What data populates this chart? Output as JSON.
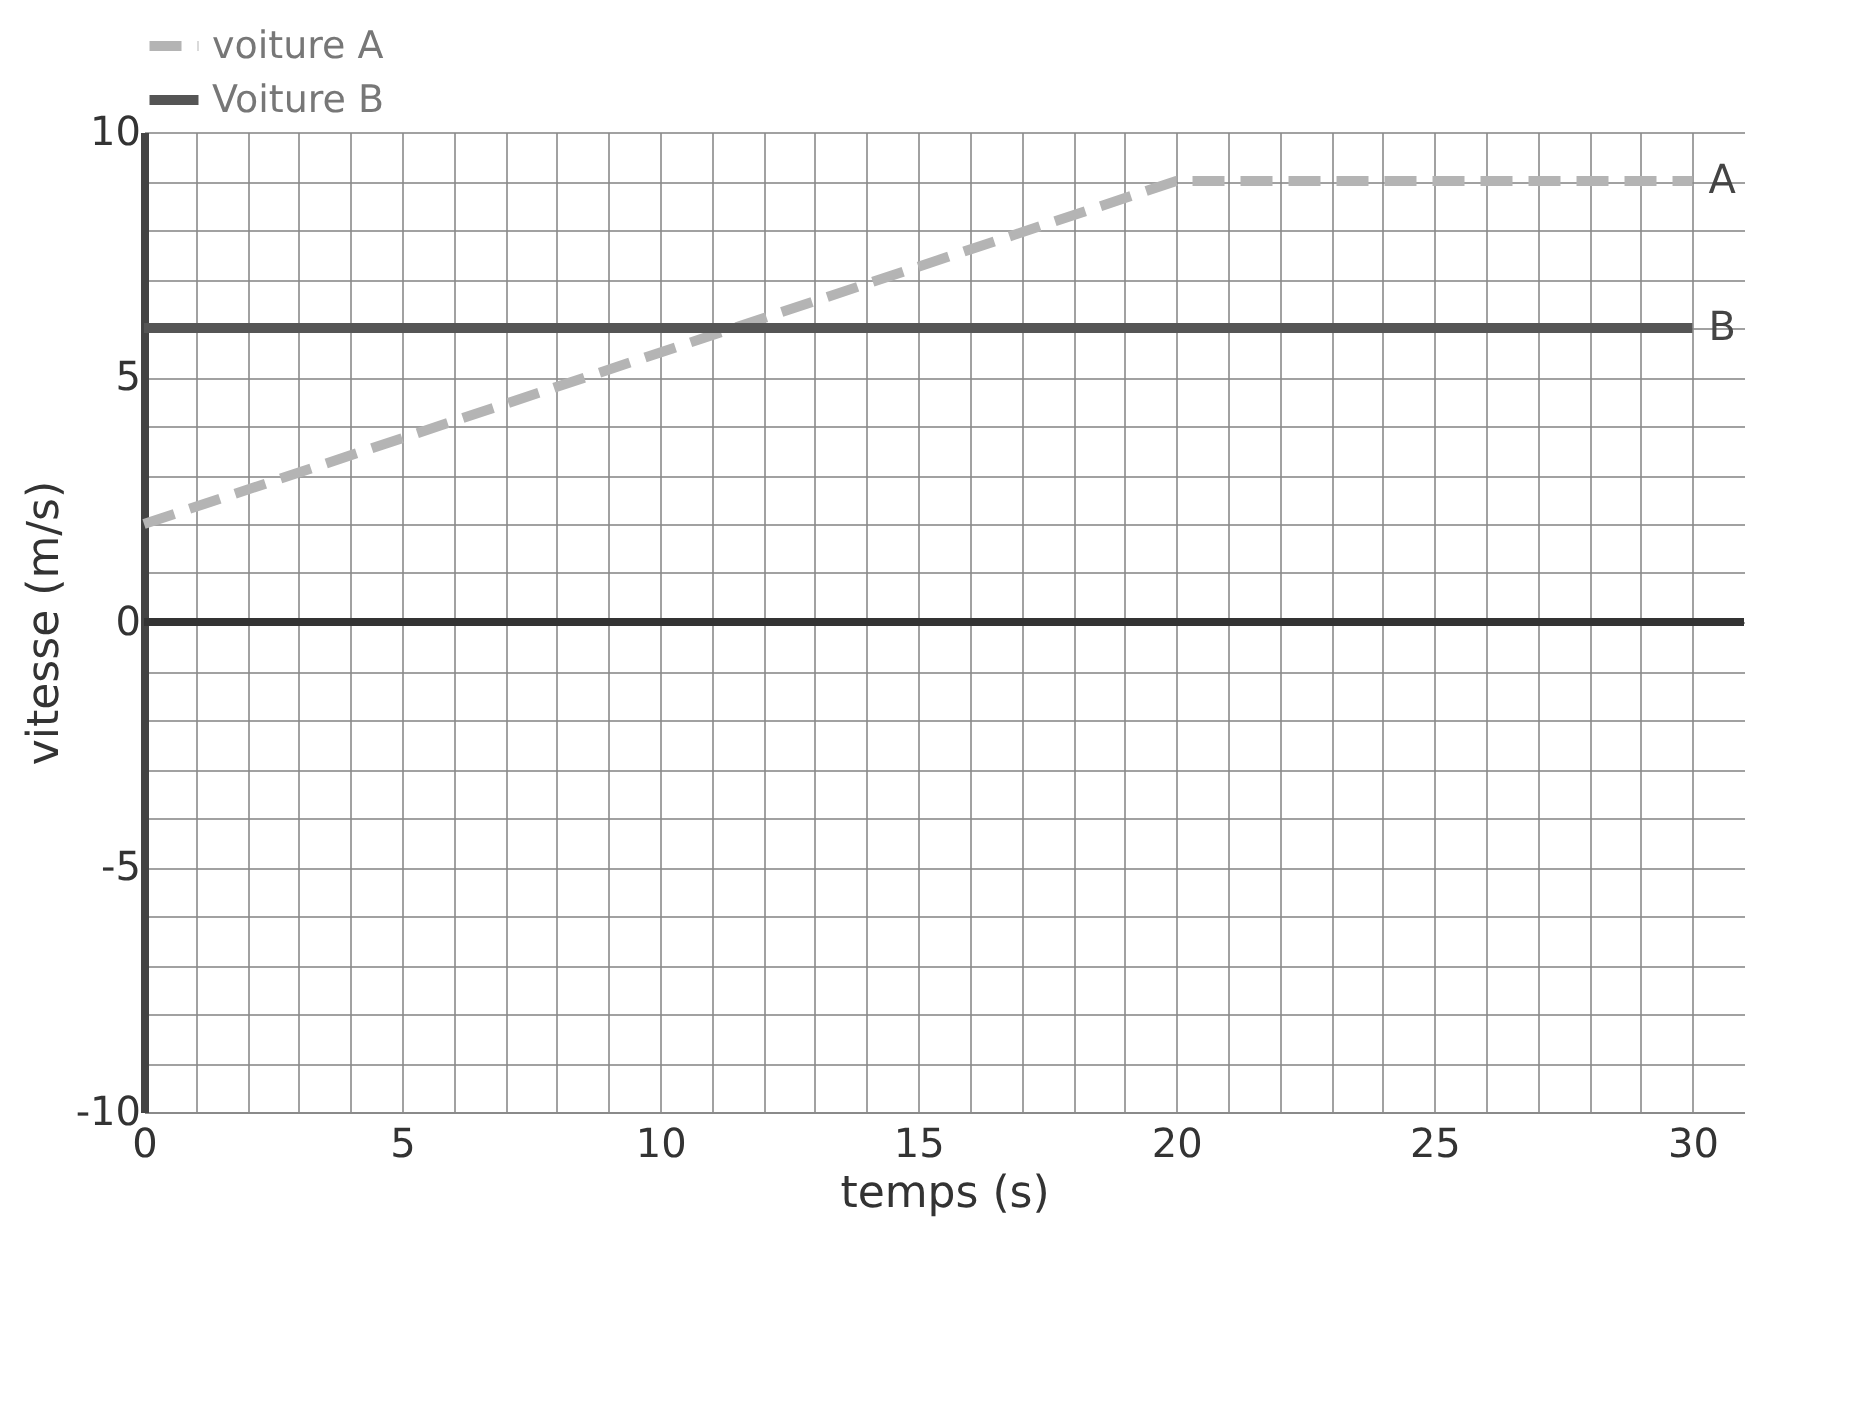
{
  "chart_data": {
    "type": "line",
    "xlabel": "temps (s)",
    "ylabel": "vitesse (m/s)",
    "xlim": [
      0,
      31
    ],
    "ylim": [
      -10,
      10
    ],
    "xticks": [
      0,
      {
        "value": 1,
        "label": null
      },
      {
        "value": 2,
        "label": null
      },
      {
        "value": 3,
        "label": null
      },
      {
        "value": 4,
        "label": null
      },
      5,
      {
        "value": 6,
        "label": null
      },
      {
        "value": 7,
        "label": null
      },
      {
        "value": 8,
        "label": null
      },
      {
        "value": 9,
        "label": null
      },
      10,
      {
        "value": 11,
        "label": null
      },
      {
        "value": 12,
        "label": null
      },
      {
        "value": 13,
        "label": null
      },
      {
        "value": 14,
        "label": null
      },
      15,
      {
        "value": 16,
        "label": null
      },
      {
        "value": 17,
        "label": null
      },
      {
        "value": 18,
        "label": null
      },
      {
        "value": 19,
        "label": null
      },
      20,
      {
        "value": 21,
        "label": null
      },
      {
        "value": 22,
        "label": null
      },
      {
        "value": 23,
        "label": null
      },
      {
        "value": 24,
        "label": null
      },
      25,
      {
        "value": 26,
        "label": null
      },
      {
        "value": 27,
        "label": null
      },
      {
        "value": 28,
        "label": null
      },
      {
        "value": 29,
        "label": null
      },
      30
    ],
    "yticks": [
      -10,
      {
        "value": -9,
        "label": null
      },
      {
        "value": -8,
        "label": null
      },
      {
        "value": -7,
        "label": null
      },
      {
        "value": -6,
        "label": null
      },
      -5,
      {
        "value": -4,
        "label": null
      },
      {
        "value": -3,
        "label": null
      },
      {
        "value": -2,
        "label": null
      },
      {
        "value": -1,
        "label": null
      },
      0,
      {
        "value": 1,
        "label": null
      },
      {
        "value": 2,
        "label": null
      },
      {
        "value": 3,
        "label": null
      },
      {
        "value": 4,
        "label": null
      },
      5,
      {
        "value": 6,
        "label": null
      },
      {
        "value": 7,
        "label": null
      },
      {
        "value": 8,
        "label": null
      },
      {
        "value": 9,
        "label": null
      },
      10
    ],
    "grid": true,
    "legend": "top left",
    "marker": "none",
    "series": [
      {
        "name": "voiture A",
        "color": "#b4b4b4",
        "line_style": "dashed",
        "x": [
          0,
          20,
          30
        ],
        "values": [
          2,
          9,
          9
        ]
      },
      {
        "name": "Voiture B",
        "color": "#555555",
        "line_style": "solid",
        "x": [
          0,
          30
        ],
        "values": [
          6,
          6
        ]
      }
    ],
    "ref_lines": [
      {
        "axis": "y",
        "value": 0,
        "color": "#333333"
      }
    ],
    "annotations": [
      {
        "text": "A",
        "x": 30,
        "y": 9
      },
      {
        "text": "B",
        "x": 30,
        "y": 6
      }
    ]
  }
}
